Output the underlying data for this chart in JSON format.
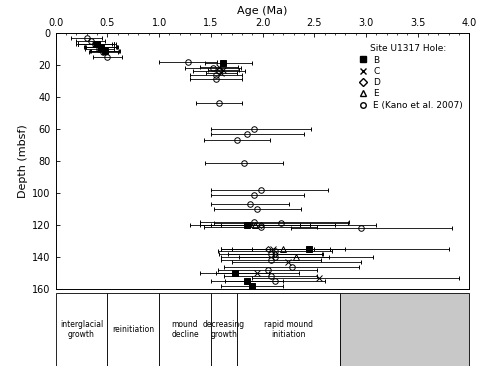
{
  "xlabel": "Age (Ma)",
  "ylabel": "Depth (mbsf)",
  "xlim": [
    0.0,
    4.0
  ],
  "ylim": [
    160,
    0
  ],
  "xticks": [
    0.0,
    0.5,
    1.0,
    1.5,
    2.0,
    2.5,
    3.0,
    3.5,
    4.0
  ],
  "yticks": [
    0,
    20,
    40,
    60,
    80,
    100,
    120,
    140,
    160
  ],
  "hole_B": [
    {
      "depth": 7,
      "age": 0.4,
      "err_lo": 0.18,
      "err_hi": 0.18
    },
    {
      "depth": 9,
      "age": 0.44,
      "err_lo": 0.16,
      "err_hi": 0.16
    },
    {
      "depth": 11,
      "age": 0.48,
      "err_lo": 0.14,
      "err_hi": 0.14
    },
    {
      "depth": 19,
      "age": 1.62,
      "err_lo": 0.18,
      "err_hi": 0.28
    },
    {
      "depth": 120,
      "age": 1.85,
      "err_lo": 0.55,
      "err_hi": 1.25
    },
    {
      "depth": 135,
      "age": 2.45,
      "err_lo": 0.55,
      "err_hi": 1.35
    },
    {
      "depth": 150,
      "age": 1.73,
      "err_lo": 0.33,
      "err_hi": 0.33
    },
    {
      "depth": 155,
      "age": 1.85,
      "err_lo": 0.35,
      "err_hi": 0.35
    },
    {
      "depth": 158,
      "age": 1.9,
      "err_lo": 0.3,
      "err_hi": 0.3
    }
  ],
  "hole_C": [
    {
      "depth": 7,
      "age": 0.38,
      "err_lo": 0.18,
      "err_hi": 0.18
    },
    {
      "depth": 9,
      "age": 0.43,
      "err_lo": 0.16,
      "err_hi": 0.16
    },
    {
      "depth": 11,
      "age": 0.47,
      "err_lo": 0.14,
      "err_hi": 0.14
    },
    {
      "depth": 21,
      "age": 1.58,
      "err_lo": 0.18,
      "err_hi": 0.18
    },
    {
      "depth": 23,
      "age": 1.62,
      "err_lo": 0.15,
      "err_hi": 0.15
    },
    {
      "depth": 25,
      "age": 1.6,
      "err_lo": 0.15,
      "err_hi": 0.15
    },
    {
      "depth": 120,
      "age": 1.88,
      "err_lo": 0.48,
      "err_hi": 0.82
    },
    {
      "depth": 135,
      "age": 2.1,
      "err_lo": 0.5,
      "err_hi": 0.55
    },
    {
      "depth": 143,
      "age": 2.25,
      "err_lo": 0.55,
      "err_hi": 0.7
    },
    {
      "depth": 150,
      "age": 1.95,
      "err_lo": 0.4,
      "err_hi": 0.4
    },
    {
      "depth": 153,
      "age": 2.55,
      "err_lo": 0.65,
      "err_hi": 1.35
    }
  ],
  "hole_D": [
    {
      "depth": 7,
      "age": 0.39,
      "err_lo": 0.17,
      "err_hi": 0.17
    },
    {
      "depth": 9,
      "age": 0.43,
      "err_lo": 0.15,
      "err_hi": 0.15
    },
    {
      "depth": 120,
      "age": 1.98,
      "err_lo": 0.38,
      "err_hi": 0.38
    },
    {
      "depth": 135,
      "age": 2.05,
      "err_lo": 0.45,
      "err_hi": 0.45
    },
    {
      "depth": 138,
      "age": 2.12,
      "err_lo": 0.45,
      "err_hi": 0.45
    }
  ],
  "hole_E": [
    {
      "depth": 7,
      "age": 0.39,
      "err_lo": 0.17,
      "err_hi": 0.17
    },
    {
      "depth": 9,
      "age": 0.44,
      "err_lo": 0.15,
      "err_hi": 0.15
    },
    {
      "depth": 120,
      "age": 1.93,
      "err_lo": 0.43,
      "err_hi": 0.53
    },
    {
      "depth": 135,
      "age": 2.2,
      "err_lo": 0.5,
      "err_hi": 0.6
    },
    {
      "depth": 140,
      "age": 2.32,
      "err_lo": 0.55,
      "err_hi": 0.75
    }
  ],
  "hole_kano": [
    {
      "depth": 3,
      "age": 0.3,
      "err_lo": 0.15,
      "err_hi": 0.15
    },
    {
      "depth": 5,
      "age": 0.34,
      "err_lo": 0.14,
      "err_hi": 0.14
    },
    {
      "depth": 7,
      "age": 0.38,
      "err_lo": 0.16,
      "err_hi": 0.16
    },
    {
      "depth": 10,
      "age": 0.42,
      "err_lo": 0.14,
      "err_hi": 0.14
    },
    {
      "depth": 12,
      "age": 0.46,
      "err_lo": 0.14,
      "err_hi": 0.14
    },
    {
      "depth": 15,
      "age": 0.5,
      "err_lo": 0.14,
      "err_hi": 0.14
    },
    {
      "depth": 18,
      "age": 1.28,
      "err_lo": 0.28,
      "err_hi": 0.28
    },
    {
      "depth": 22,
      "age": 1.52,
      "err_lo": 0.27,
      "err_hi": 0.27
    },
    {
      "depth": 24,
      "age": 1.58,
      "err_lo": 0.25,
      "err_hi": 0.25
    },
    {
      "depth": 26,
      "age": 1.55,
      "err_lo": 0.25,
      "err_hi": 0.25
    },
    {
      "depth": 29,
      "age": 1.55,
      "err_lo": 0.25,
      "err_hi": 0.25
    },
    {
      "depth": 44,
      "age": 1.58,
      "err_lo": 0.22,
      "err_hi": 0.22
    },
    {
      "depth": 60,
      "age": 1.92,
      "err_lo": 0.42,
      "err_hi": 0.55
    },
    {
      "depth": 63,
      "age": 1.85,
      "err_lo": 0.35,
      "err_hi": 0.55
    },
    {
      "depth": 67,
      "age": 1.75,
      "err_lo": 0.32,
      "err_hi": 0.32
    },
    {
      "depth": 81,
      "age": 1.82,
      "err_lo": 0.38,
      "err_hi": 0.38
    },
    {
      "depth": 98,
      "age": 1.98,
      "err_lo": 0.48,
      "err_hi": 0.65
    },
    {
      "depth": 101,
      "age": 1.92,
      "err_lo": 0.42,
      "err_hi": 0.48
    },
    {
      "depth": 107,
      "age": 1.88,
      "err_lo": 0.38,
      "err_hi": 0.38
    },
    {
      "depth": 110,
      "age": 1.95,
      "err_lo": 0.42,
      "err_hi": 0.42
    },
    {
      "depth": 118,
      "age": 1.92,
      "err_lo": 0.52,
      "err_hi": 0.92
    },
    {
      "depth": 119,
      "age": 2.18,
      "err_lo": 0.65,
      "err_hi": 0.65
    },
    {
      "depth": 121,
      "age": 1.98,
      "err_lo": 0.55,
      "err_hi": 0.55
    },
    {
      "depth": 122,
      "age": 2.95,
      "err_lo": 0.68,
      "err_hi": 0.88
    },
    {
      "depth": 136,
      "age": 2.12,
      "err_lo": 0.55,
      "err_hi": 0.55
    },
    {
      "depth": 138,
      "age": 2.08,
      "err_lo": 0.5,
      "err_hi": 0.5
    },
    {
      "depth": 140,
      "age": 2.12,
      "err_lo": 0.52,
      "err_hi": 0.52
    },
    {
      "depth": 142,
      "age": 2.08,
      "err_lo": 0.48,
      "err_hi": 0.48
    },
    {
      "depth": 146,
      "age": 2.28,
      "err_lo": 0.65,
      "err_hi": 0.65
    },
    {
      "depth": 148,
      "age": 2.05,
      "err_lo": 0.48,
      "err_hi": 0.48
    },
    {
      "depth": 152,
      "age": 2.08,
      "err_lo": 0.45,
      "err_hi": 0.45
    },
    {
      "depth": 155,
      "age": 2.12,
      "err_lo": 0.48,
      "err_hi": 0.48
    }
  ],
  "bottom_labels": [
    {
      "text": "interglacial\ngrowth",
      "x_start": 0.0,
      "x_end": 0.5,
      "gray": false
    },
    {
      "text": "reinitiation",
      "x_start": 0.5,
      "x_end": 1.0,
      "gray": false
    },
    {
      "text": "mound\ndecline",
      "x_start": 1.0,
      "x_end": 1.5,
      "gray": false
    },
    {
      "text": "decreasing\ngrowth",
      "x_start": 1.5,
      "x_end": 1.75,
      "gray": false
    },
    {
      "text": "rapid mound\ninitiation",
      "x_start": 1.75,
      "x_end": 2.75,
      "gray": false
    },
    {
      "text": "",
      "x_start": 2.75,
      "x_end": 4.0,
      "gray": true
    }
  ]
}
